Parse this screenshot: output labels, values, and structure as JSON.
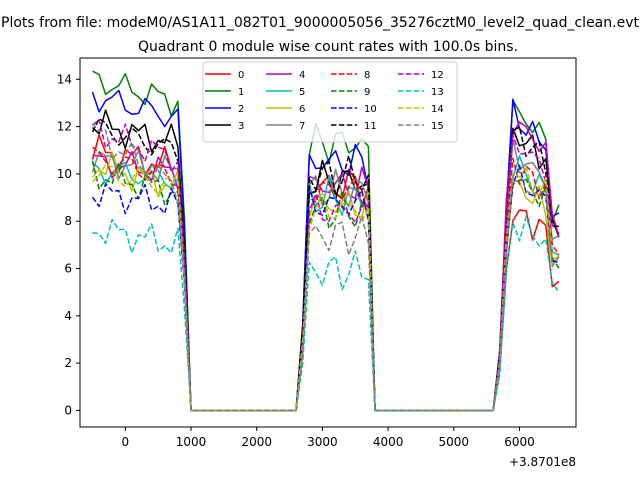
{
  "figure": {
    "suptitle": "Plots from file: modeM0/AS1A11_082T01_9000005056_35276cztM0_level2_quad_clean.evt"
  },
  "chart_data": {
    "type": "line",
    "title": "Quadrant 0 module wise count rates with 100.0s bins.",
    "xlabel": "",
    "ylabel": "",
    "x_offset_label": "+3.8701e8",
    "xlim": [
      -690,
      6860
    ],
    "ylim": [
      -0.7,
      14.9
    ],
    "xticks": [
      0,
      1000,
      2000,
      3000,
      4000,
      5000,
      6000
    ],
    "yticks": [
      0,
      2,
      4,
      6,
      8,
      10,
      12,
      14
    ],
    "grid": false,
    "legend": {
      "placement": "upper center",
      "columns": 4
    },
    "segments": [
      [
        -500,
        1000
      ],
      [
        2700,
        3800
      ],
      [
        5650,
        6600
      ]
    ],
    "zero_level": 0,
    "series": [
      {
        "name": "0",
        "color": "#ff0000",
        "style": "solid",
        "level": [
          11.0,
          10.2,
          9.5,
          8.5
        ]
      },
      {
        "name": "1",
        "color": "#008000",
        "style": "solid",
        "level": [
          14.0,
          12.9,
          11.3,
          12.9
        ]
      },
      {
        "name": "2",
        "color": "#0000ff",
        "style": "solid",
        "level": [
          13.3,
          12.2,
          10.5,
          12.6
        ]
      },
      {
        "name": "3",
        "color": "#000000",
        "style": "solid",
        "level": [
          12.1,
          11.2,
          9.7,
          11.9
        ]
      },
      {
        "name": "4",
        "color": "#bf00bf",
        "style": "solid",
        "level": [
          10.5,
          10.0,
          9.5,
          12.4
        ]
      },
      {
        "name": "5",
        "color": "#00bfbf",
        "style": "solid",
        "level": [
          10.2,
          9.7,
          9.0,
          10.5
        ]
      },
      {
        "name": "6",
        "color": "#bfbf00",
        "style": "solid",
        "level": [
          10.4,
          9.3,
          8.7,
          9.7
        ]
      },
      {
        "name": "7",
        "color": "#808080",
        "style": "solid",
        "level": [
          10.6,
          10.0,
          9.3,
          11.0
        ]
      },
      {
        "name": "8",
        "color": "#ff0000",
        "style": "dashed",
        "level": [
          10.7,
          9.7,
          9.3,
          10.5
        ]
      },
      {
        "name": "9",
        "color": "#008000",
        "style": "dashed",
        "level": [
          10.0,
          9.1,
          8.4,
          10.0
        ]
      },
      {
        "name": "10",
        "color": "#0000ff",
        "style": "dashed",
        "level": [
          9.2,
          8.6,
          8.7,
          10.0
        ]
      },
      {
        "name": "11",
        "color": "#000000",
        "style": "dashed",
        "level": [
          12.0,
          10.8,
          9.9,
          11.9
        ]
      },
      {
        "name": "12",
        "color": "#bf00bf",
        "style": "dashed",
        "level": [
          11.9,
          10.4,
          8.4,
          11.5
        ]
      },
      {
        "name": "13",
        "color": "#00bfbf",
        "style": "dashed",
        "level": [
          7.7,
          6.9,
          5.9,
          8.0
        ]
      },
      {
        "name": "14",
        "color": "#bfbf00",
        "style": "dashed",
        "level": [
          10.1,
          9.4,
          8.5,
          10.3
        ]
      },
      {
        "name": "15",
        "color": "#808080",
        "style": "dashed",
        "level": [
          11.8,
          9.0,
          7.4,
          10.0
        ]
      }
    ]
  }
}
